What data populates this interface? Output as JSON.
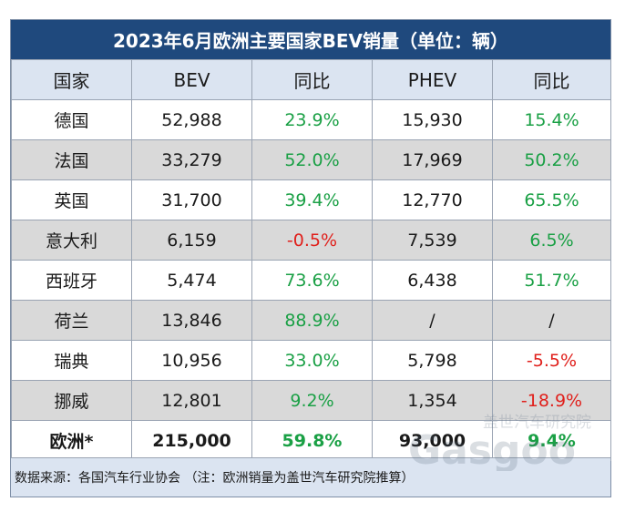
{
  "title": "2023年6月欧洲主要国家BEV销量（单位：辆）",
  "headers": [
    "国家",
    "BEV",
    "同比",
    "PHEV",
    "同比"
  ],
  "rows": [
    {
      "country": "德国",
      "bev": "52,988",
      "bev_yoy": "23.9%",
      "phev": "15,930",
      "phev_yoy": "15.4%"
    },
    {
      "country": "法国",
      "bev": "33,279",
      "bev_yoy": "52.0%",
      "phev": "17,969",
      "phev_yoy": "50.2%"
    },
    {
      "country": "英国",
      "bev": "31,700",
      "bev_yoy": "39.4%",
      "phev": "12,770",
      "phev_yoy": "65.5%"
    },
    {
      "country": "意大利",
      "bev": "6,159",
      "bev_yoy": "-0.5%",
      "phev": "7,539",
      "phev_yoy": "6.5%"
    },
    {
      "country": "西班牙",
      "bev": "5,474",
      "bev_yoy": "73.6%",
      "phev": "6,438",
      "phev_yoy": "51.7%"
    },
    {
      "country": "荷兰",
      "bev": "13,846",
      "bev_yoy": "88.9%",
      "phev": "/",
      "phev_yoy": "/"
    },
    {
      "country": "瑞典",
      "bev": "10,956",
      "bev_yoy": "33.0%",
      "phev": "5,798",
      "phev_yoy": "-5.5%"
    },
    {
      "country": "挪威",
      "bev": "12,801",
      "bev_yoy": "9.2%",
      "phev": "1,354",
      "phev_yoy": "-18.9%"
    }
  ],
  "total": {
    "country": "欧洲*",
    "bev": "215,000",
    "bev_yoy": "59.8%",
    "phev": "93,000",
    "phev_yoy": "9.4%"
  },
  "source": "数据来源：各国汽车行业协会 （注：欧洲销量为盖世汽车研究院推算）",
  "watermark": {
    "cn": "盖世汽车研究院",
    "en": "Gasgoo"
  },
  "colors": {
    "header_bg": "#1f497d",
    "positive": "#1aa045",
    "negative": "#e0201c",
    "alt_row": "#d9d9d9",
    "column_header_bg": "#dbe4f1"
  }
}
